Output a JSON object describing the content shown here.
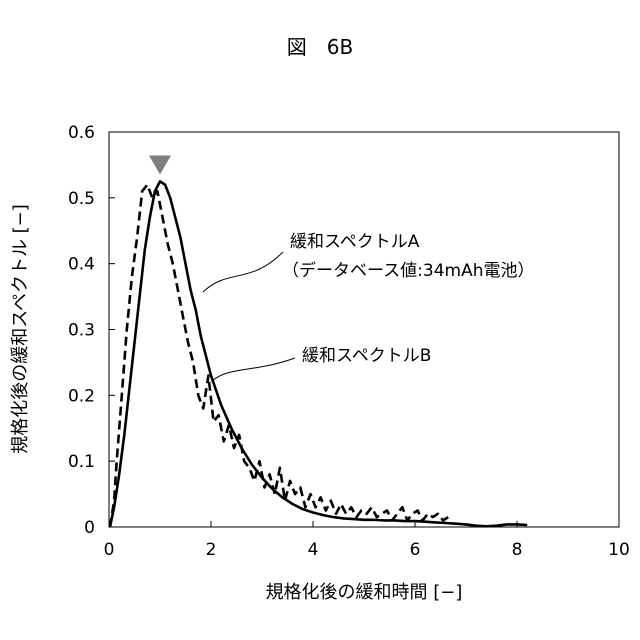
{
  "figure_label": "図　6B",
  "chart_data": {
    "type": "line",
    "title": "図　6B",
    "xlabel": "規格化後の緩和時間 [−]",
    "ylabel": "規格化後の緩和スペクトル [−]",
    "xlim": [
      0,
      10
    ],
    "ylim": [
      0,
      0.6
    ],
    "xticks": [
      0,
      2,
      4,
      6,
      8,
      10
    ],
    "yticks": [
      0,
      0.1,
      0.2,
      0.3,
      0.4,
      0.5,
      0.6
    ],
    "xtick_labels": [
      "0",
      "2",
      "4",
      "6",
      "8",
      "10"
    ],
    "ytick_labels": [
      "0",
      "0.1",
      "0.2",
      "0.3",
      "0.4",
      "0.5",
      "0.6"
    ],
    "grid": false,
    "legend": "none",
    "series": [
      {
        "name": "緩和スペクトルA",
        "name_sub": "（データベース値:34mAh電池）",
        "style": "solid",
        "color": "#000000",
        "x": [
          0.02,
          0.1,
          0.2,
          0.3,
          0.4,
          0.5,
          0.6,
          0.7,
          0.8,
          0.9,
          1.0,
          1.1,
          1.2,
          1.3,
          1.4,
          1.5,
          1.6,
          1.7,
          1.8,
          1.9,
          2.0,
          2.2,
          2.4,
          2.6,
          2.8,
          3.0,
          3.2,
          3.4,
          3.6,
          3.8,
          4.0,
          4.2,
          4.4,
          4.6,
          4.8,
          5.0,
          5.2,
          5.4,
          5.6,
          5.8,
          6.0,
          6.2,
          6.4,
          6.6,
          6.8,
          7.0,
          7.2,
          7.4,
          7.6,
          7.8,
          8.0,
          8.2
        ],
        "values": [
          0.0,
          0.03,
          0.08,
          0.14,
          0.21,
          0.28,
          0.35,
          0.42,
          0.47,
          0.51,
          0.525,
          0.52,
          0.5,
          0.47,
          0.44,
          0.4,
          0.36,
          0.33,
          0.29,
          0.26,
          0.23,
          0.185,
          0.15,
          0.12,
          0.095,
          0.075,
          0.058,
          0.045,
          0.035,
          0.027,
          0.022,
          0.018,
          0.015,
          0.013,
          0.012,
          0.011,
          0.011,
          0.01,
          0.01,
          0.009,
          0.009,
          0.008,
          0.007,
          0.006,
          0.005,
          0.004,
          0.002,
          0.001,
          0.002,
          0.004,
          0.004,
          0.003
        ]
      },
      {
        "name": "緩和スペクトルB",
        "style": "dashed",
        "color": "#000000",
        "x": [
          0.02,
          0.1,
          0.15,
          0.25,
          0.35,
          0.45,
          0.55,
          0.65,
          0.75,
          0.85,
          0.95,
          1.05,
          1.15,
          1.25,
          1.35,
          1.45,
          1.55,
          1.65,
          1.75,
          1.85,
          1.95,
          2.05,
          2.15,
          2.25,
          2.35,
          2.45,
          2.55,
          2.65,
          2.75,
          2.85,
          2.95,
          3.05,
          3.15,
          3.25,
          3.35,
          3.45,
          3.55,
          3.65,
          3.75,
          3.85,
          3.95,
          4.05,
          4.15,
          4.25,
          4.35,
          4.45,
          4.55,
          4.65,
          4.75,
          4.85,
          4.95,
          5.05,
          5.15,
          5.25,
          5.35,
          5.45,
          5.55,
          5.65,
          5.75,
          5.85,
          5.95,
          6.05,
          6.15,
          6.25,
          6.35,
          6.45,
          6.55,
          6.65
        ],
        "values": [
          0.0,
          0.04,
          0.1,
          0.2,
          0.3,
          0.38,
          0.44,
          0.51,
          0.52,
          0.5,
          0.51,
          0.47,
          0.43,
          0.4,
          0.36,
          0.32,
          0.28,
          0.25,
          0.2,
          0.18,
          0.23,
          0.16,
          0.17,
          0.13,
          0.155,
          0.12,
          0.14,
          0.1,
          0.09,
          0.07,
          0.1,
          0.06,
          0.08,
          0.05,
          0.09,
          0.04,
          0.07,
          0.05,
          0.06,
          0.03,
          0.05,
          0.03,
          0.045,
          0.025,
          0.04,
          0.02,
          0.035,
          0.02,
          0.03,
          0.015,
          0.025,
          0.02,
          0.03,
          0.015,
          0.02,
          0.025,
          0.01,
          0.02,
          0.03,
          0.01,
          0.02,
          0.025,
          0.01,
          0.02,
          0.015,
          0.02,
          0.01,
          0.015
        ]
      }
    ],
    "annotations": [
      {
        "type": "triangle-marker",
        "x": 1.0,
        "y": 0.54,
        "color": "#808080"
      }
    ]
  }
}
